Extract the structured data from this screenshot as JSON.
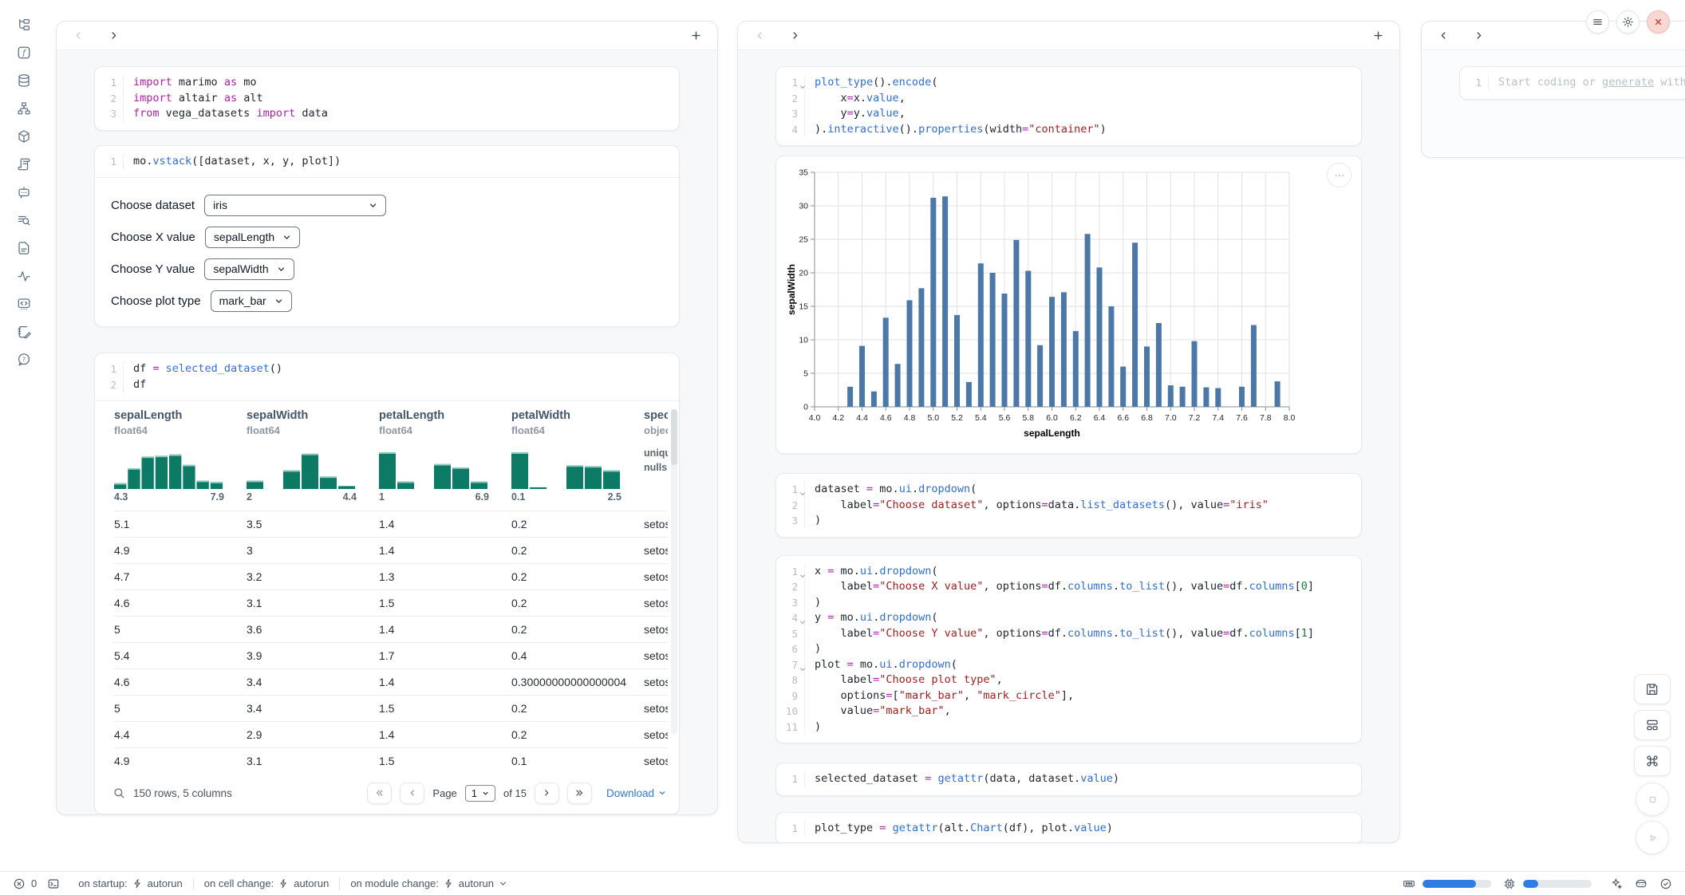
{
  "sidebar": {
    "icons": [
      "file-tree",
      "function",
      "database",
      "dependency-graph",
      "package",
      "script",
      "chat-bot",
      "search-list",
      "document",
      "activity",
      "code-snippet",
      "scratchpad",
      "help"
    ]
  },
  "panels": {
    "notebook": {
      "cells": {
        "imports": {
          "lines": [
            "import marimo as mo",
            "import altair as alt",
            "from vega_datasets import data"
          ],
          "folds": []
        },
        "vstack": {
          "lines": [
            "mo.vstack([dataset, x, y, plot])"
          ],
          "folds": []
        },
        "df": {
          "lines": [
            "df = selected_dataset()",
            "df"
          ],
          "folds": []
        }
      },
      "controls": [
        {
          "label": "Choose dataset",
          "value": "iris"
        },
        {
          "label": "Choose X value",
          "value": "sepalLength"
        },
        {
          "label": "Choose Y value",
          "value": "sepalWidth"
        },
        {
          "label": "Choose plot type",
          "value": "mark_bar"
        }
      ],
      "table": {
        "columns": [
          {
            "name": "sepalLength",
            "dtype": "float64",
            "min": "4.3",
            "max": "7.9",
            "hist": [
              0.14,
              0.5,
              0.78,
              0.8,
              0.83,
              0.58,
              0.2,
              0.17
            ]
          },
          {
            "name": "sepalWidth",
            "dtype": "float64",
            "min": "2",
            "max": "4.4",
            "hist": [
              0.2,
              0,
              0.45,
              0.85,
              0.3,
              0.07
            ]
          },
          {
            "name": "petalLength",
            "dtype": "float64",
            "min": "1",
            "max": "6.9",
            "hist": [
              0.88,
              0.18,
              0,
              0.6,
              0.52,
              0.18
            ]
          },
          {
            "name": "petalWidth",
            "dtype": "float64",
            "min": "0.1",
            "max": "2.5",
            "hist": [
              0.88,
              0.04,
              0,
              0.57,
              0.55,
              0.45
            ]
          },
          {
            "name": "species",
            "dtype": "object",
            "meta": [
              "unique",
              "nulls:"
            ]
          }
        ],
        "rows": [
          [
            "5.1",
            "3.5",
            "1.4",
            "0.2",
            "setosa"
          ],
          [
            "4.9",
            "3",
            "1.4",
            "0.2",
            "setosa"
          ],
          [
            "4.7",
            "3.2",
            "1.3",
            "0.2",
            "setosa"
          ],
          [
            "4.6",
            "3.1",
            "1.5",
            "0.2",
            "setosa"
          ],
          [
            "5",
            "3.6",
            "1.4",
            "0.2",
            "setosa"
          ],
          [
            "5.4",
            "3.9",
            "1.7",
            "0.4",
            "setosa"
          ],
          [
            "4.6",
            "3.4",
            "1.4",
            "0.30000000000000004",
            "setosa"
          ],
          [
            "5",
            "3.4",
            "1.5",
            "0.2",
            "setosa"
          ],
          [
            "4.4",
            "2.9",
            "1.4",
            "0.2",
            "setosa"
          ],
          [
            "4.9",
            "3.1",
            "1.5",
            "0.1",
            "setosa"
          ]
        ],
        "footer": {
          "summary": "150 rows, 5 columns",
          "page_label": "Page",
          "page": "1",
          "of": "of 15",
          "download": "Download"
        }
      }
    },
    "chart_panel": {
      "cells": {
        "plot": {
          "lines": [
            "plot_type().encode(",
            "    x=x.value,",
            "    y=y.value,",
            ").interactive().properties(width=\"container\")"
          ],
          "folds": [
            1
          ]
        },
        "dataset": {
          "lines": [
            "dataset = mo.ui.dropdown(",
            "    label=\"Choose dataset\", options=data.list_datasets(), value=\"iris\"",
            ")"
          ],
          "folds": [
            1
          ]
        },
        "xyplot": {
          "lines": [
            "x = mo.ui.dropdown(",
            "    label=\"Choose X value\", options=df.columns.to_list(), value=df.columns[0]",
            ")",
            "y = mo.ui.dropdown(",
            "    label=\"Choose Y value\", options=df.columns.to_list(), value=df.columns[1]",
            ")",
            "plot = mo.ui.dropdown(",
            "    label=\"Choose plot type\",",
            "    options=[\"mark_bar\", \"mark_circle\"],",
            "    value=\"mark_bar\",",
            ")"
          ],
          "folds": [
            1,
            4,
            7
          ]
        },
        "selected": {
          "lines": [
            "selected_dataset = getattr(data, dataset.value)"
          ],
          "folds": []
        },
        "plot_type": {
          "lines": [
            "plot_type = getattr(alt.Chart(df), plot.value)"
          ],
          "folds": []
        }
      }
    },
    "scratch": {
      "line_no": "1",
      "placeholder": {
        "pre": "Start coding or ",
        "link": "generate",
        "post": " with"
      }
    }
  },
  "chart_data": {
    "type": "bar",
    "title": "",
    "xlabel": "sepalLength",
    "ylabel": "sepalWidth",
    "x": [
      4.3,
      4.4,
      4.5,
      4.6,
      4.7,
      4.8,
      4.9,
      5.0,
      5.1,
      5.2,
      5.3,
      5.4,
      5.5,
      5.6,
      5.7,
      5.8,
      5.9,
      6.0,
      6.1,
      6.2,
      6.3,
      6.4,
      6.5,
      6.6,
      6.7,
      6.8,
      6.9,
      7.0,
      7.1,
      7.2,
      7.3,
      7.4,
      7.6,
      7.7,
      7.9
    ],
    "values": [
      3.0,
      9.1,
      2.3,
      13.3,
      6.4,
      15.9,
      17.7,
      31.2,
      31.4,
      13.7,
      3.7,
      21.4,
      20.0,
      16.9,
      24.9,
      20.3,
      9.2,
      16.4,
      17.1,
      11.3,
      25.8,
      20.8,
      15.0,
      6.0,
      24.5,
      9.0,
      12.5,
      3.2,
      3.0,
      9.8,
      2.9,
      2.8,
      3.0,
      12.2,
      3.8
    ],
    "xlim": [
      4.0,
      8.0
    ],
    "xtick_step": 0.2,
    "ylim": [
      0,
      35
    ],
    "ytick_step": 5,
    "grid": true,
    "legend": "none",
    "bar_color": "#4c78a8"
  },
  "statusbar": {
    "errors": "0",
    "groups": [
      {
        "label": "on startup:",
        "value": "autorun"
      },
      {
        "label": "on cell change:",
        "value": "autorun"
      },
      {
        "label": "on module change:",
        "value": "autorun"
      }
    ],
    "mem_pct": 78,
    "cpu_pct": 22
  },
  "colors": {
    "accent_blue": "#2e7de2",
    "bar_blue": "#4c78a8",
    "hist_teal": "#0d7a66",
    "link_blue": "#2e7cd6",
    "close_red": "#d5443f",
    "keyword": "#ac22a8",
    "property": "#2f6ed3",
    "string": "#a31d1d",
    "number": "#1a7f37"
  }
}
